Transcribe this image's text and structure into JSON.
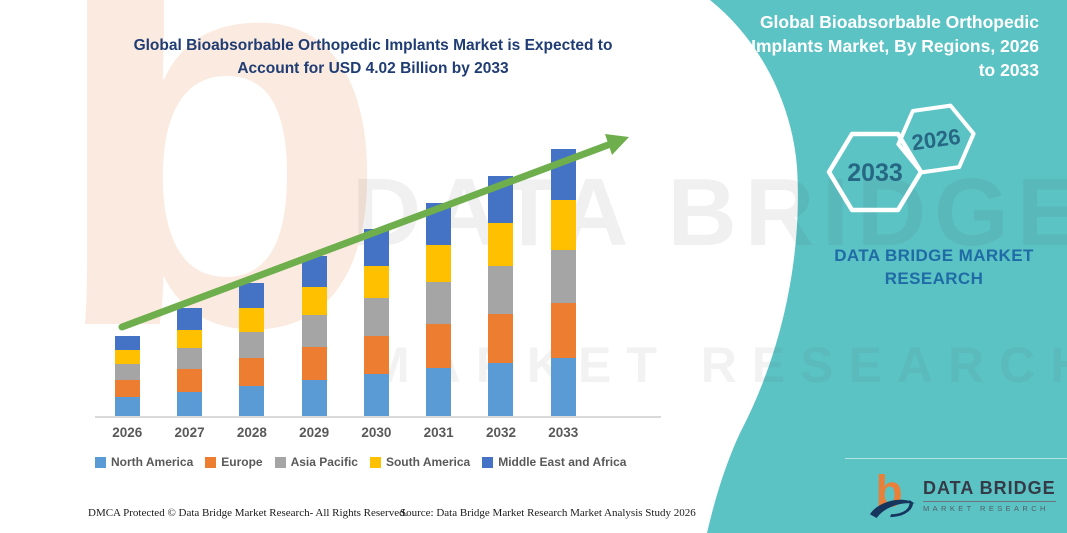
{
  "left_title": {
    "line1": "Global Bioabsorbable Orthopedic Implants Market is Expected to",
    "line2": "Account for USD 4.02 Billion by 2033"
  },
  "right_panel": {
    "title_lines": [
      "Global Bioabsorbable Orthopedic",
      "Implants Market, By Regions, 2026",
      "to 2033"
    ],
    "hexagons": [
      {
        "label": "2033"
      },
      {
        "label": "2026"
      }
    ],
    "brand_line1": "DATA BRIDGE MARKET",
    "brand_line2": "RESEARCH"
  },
  "logo": {
    "icon_glyph": "b",
    "title": "DATA BRIDGE",
    "subtitle": "MARKET RESEARCH"
  },
  "watermarks": {
    "b_glyph": "b",
    "big_text": "DATA BRIDGE",
    "sub_text": "MARKET RESEARCH"
  },
  "footer": {
    "left": "DMCA Protected © Data Bridge Market Research-  All Rights Reserved.",
    "right": "Source: Data Bridge Market Research  Market Analysis Study 2026"
  },
  "colors": {
    "teal_background": "#5CC3C5",
    "title_navy": "#1F3C73",
    "arrow_green": "#6FAE4C",
    "brand_blue": "#1F6BA5",
    "hexagon_label": "#266884",
    "axis_gray": "#D9D9D9",
    "label_gray": "#595959"
  },
  "chart_data": {
    "type": "bar",
    "stacked": true,
    "title": "Global Bioabsorbable Orthopedic Implants Market is Expected to Account for USD 4.02 Billion by 2033",
    "units": "USD Billion",
    "categories": [
      "2026",
      "2027",
      "2028",
      "2029",
      "2030",
      "2031",
      "2032",
      "2033"
    ],
    "series": [
      {
        "name": "North America",
        "color": "#5B9BD5",
        "values": [
          0.28,
          0.36,
          0.45,
          0.54,
          0.63,
          0.72,
          0.8,
          0.88
        ]
      },
      {
        "name": "Europe",
        "color": "#ED7D31",
        "values": [
          0.26,
          0.34,
          0.42,
          0.5,
          0.58,
          0.66,
          0.74,
          0.82
        ]
      },
      {
        "name": "Asia Pacific",
        "color": "#A5A5A5",
        "values": [
          0.24,
          0.32,
          0.4,
          0.48,
          0.56,
          0.64,
          0.72,
          0.8
        ]
      },
      {
        "name": "South America",
        "color": "#FFC000",
        "values": [
          0.21,
          0.28,
          0.35,
          0.42,
          0.49,
          0.56,
          0.64,
          0.76
        ]
      },
      {
        "name": "Middle East and Africa",
        "color": "#4472C4",
        "values": [
          0.21,
          0.32,
          0.38,
          0.47,
          0.55,
          0.63,
          0.72,
          0.76
        ]
      }
    ],
    "totals": [
      1.2,
      1.62,
      2.0,
      2.41,
      2.81,
      3.21,
      3.62,
      4.02
    ],
    "values_estimated_from_bar_heights": true,
    "ylim": [
      0,
      4.5
    ],
    "value_axis_visible": false,
    "grid": false,
    "legend_position": "bottom",
    "trend_arrow": true
  }
}
